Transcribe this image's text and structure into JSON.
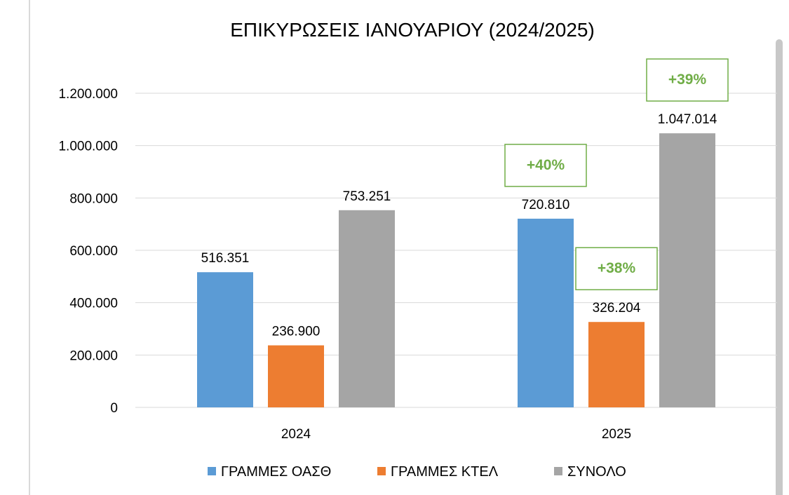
{
  "chart_data": {
    "type": "bar",
    "title": "ΕΠΙΚΥΡΩΣΕΙΣ ΙΑΝΟΥΑΡΙΟΥ (2024/2025)",
    "categories": [
      "2024",
      "2025"
    ],
    "series": [
      {
        "name": "ΓΡΑΜΜΕΣ ΟΑΣΘ",
        "color": "#5b9bd5",
        "values": [
          516351,
          720810
        ],
        "labels": [
          "516.351",
          "720.810"
        ]
      },
      {
        "name": "ΓΡΑΜΜΕΣ ΚΤΕΛ",
        "color": "#ed7d31",
        "values": [
          236900,
          326204
        ],
        "labels": [
          "236.900",
          "326.204"
        ]
      },
      {
        "name": "ΣΥΝΟΛΟ",
        "color": "#a5a5a5",
        "values": [
          753251,
          1047014
        ],
        "labels": [
          "753.251",
          "1.047.014"
        ]
      }
    ],
    "ylim": [
      0,
      1200000
    ],
    "yticks": [
      0,
      200000,
      400000,
      600000,
      800000,
      1000000,
      1200000
    ],
    "ytick_labels": [
      "0",
      "200.000",
      "400.000",
      "600.000",
      "800.000",
      "1.000.000",
      "1.200.000"
    ],
    "grid": true,
    "legend": "bottom",
    "annotations": [
      {
        "text": "+40%",
        "series": 0,
        "category": 1,
        "color": "#70ad47"
      },
      {
        "text": "+38%",
        "series": 1,
        "category": 1,
        "color": "#70ad47"
      },
      {
        "text": "+39%",
        "series": 2,
        "category": 1,
        "color": "#70ad47"
      }
    ],
    "colors": {
      "grid": "#d9d9d9",
      "text": "#000000",
      "annotation_border": "#70ad47"
    }
  }
}
